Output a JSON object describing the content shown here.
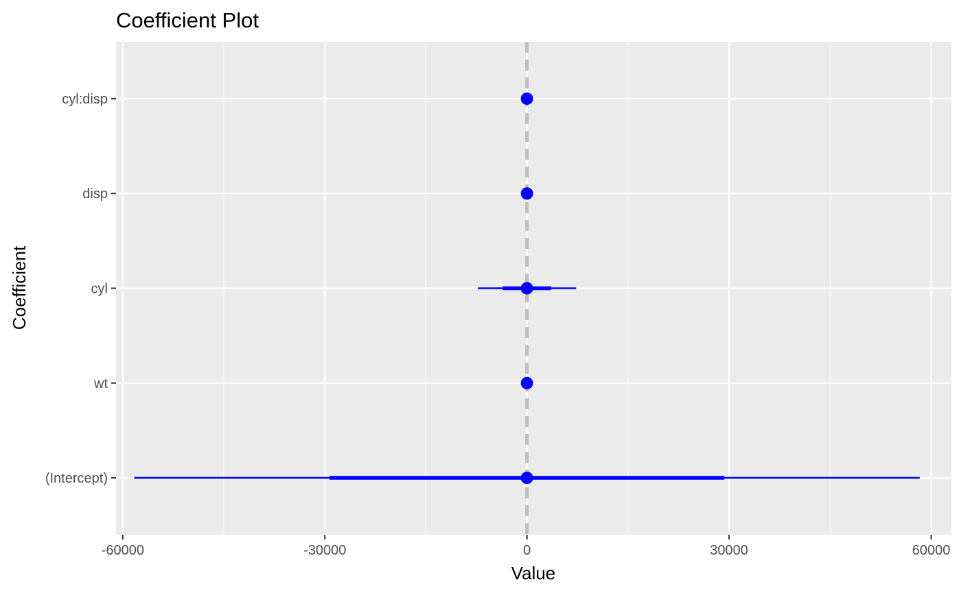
{
  "chart_data": {
    "type": "coefficient",
    "title": "Coefficient Plot",
    "xlabel": "Value",
    "ylabel": "Coefficient",
    "xlim": [
      -61000,
      63000
    ],
    "x_ticks": [
      -60000,
      -30000,
      0,
      30000,
      60000
    ],
    "x_tick_labels": [
      "-60000",
      "-30000",
      "0",
      "30000",
      "60000"
    ],
    "x_minor_ticks": [
      -45000,
      -15000,
      15000,
      45000
    ],
    "reference_line": 0,
    "categories": [
      "(Intercept)",
      "wt",
      "cyl",
      "disp",
      "cyl:disp"
    ],
    "coefficients": [
      {
        "name": "(Intercept)",
        "value": 0,
        "inner": [
          -29300,
          29300
        ],
        "outer": [
          -58300,
          58300
        ]
      },
      {
        "name": "wt",
        "value": 0,
        "inner": [
          0,
          0
        ],
        "outer": [
          0,
          0
        ]
      },
      {
        "name": "cyl",
        "value": 0,
        "inner": [
          -3600,
          3600
        ],
        "outer": [
          -7300,
          7300
        ]
      },
      {
        "name": "disp",
        "value": 0,
        "inner": [
          0,
          0
        ],
        "outer": [
          0,
          0
        ]
      },
      {
        "name": "cyl:disp",
        "value": 0,
        "inner": [
          0,
          0
        ],
        "outer": [
          0,
          0
        ]
      }
    ],
    "grid": true,
    "colors": {
      "panel_background": "#ebebeb",
      "grid_major": "#ffffff",
      "grid_minor": "#ffffff",
      "point": "#0000ff",
      "reference_line": "#bebebe",
      "tick_text": "#4d4d4d",
      "tick_mark": "#333333"
    }
  }
}
